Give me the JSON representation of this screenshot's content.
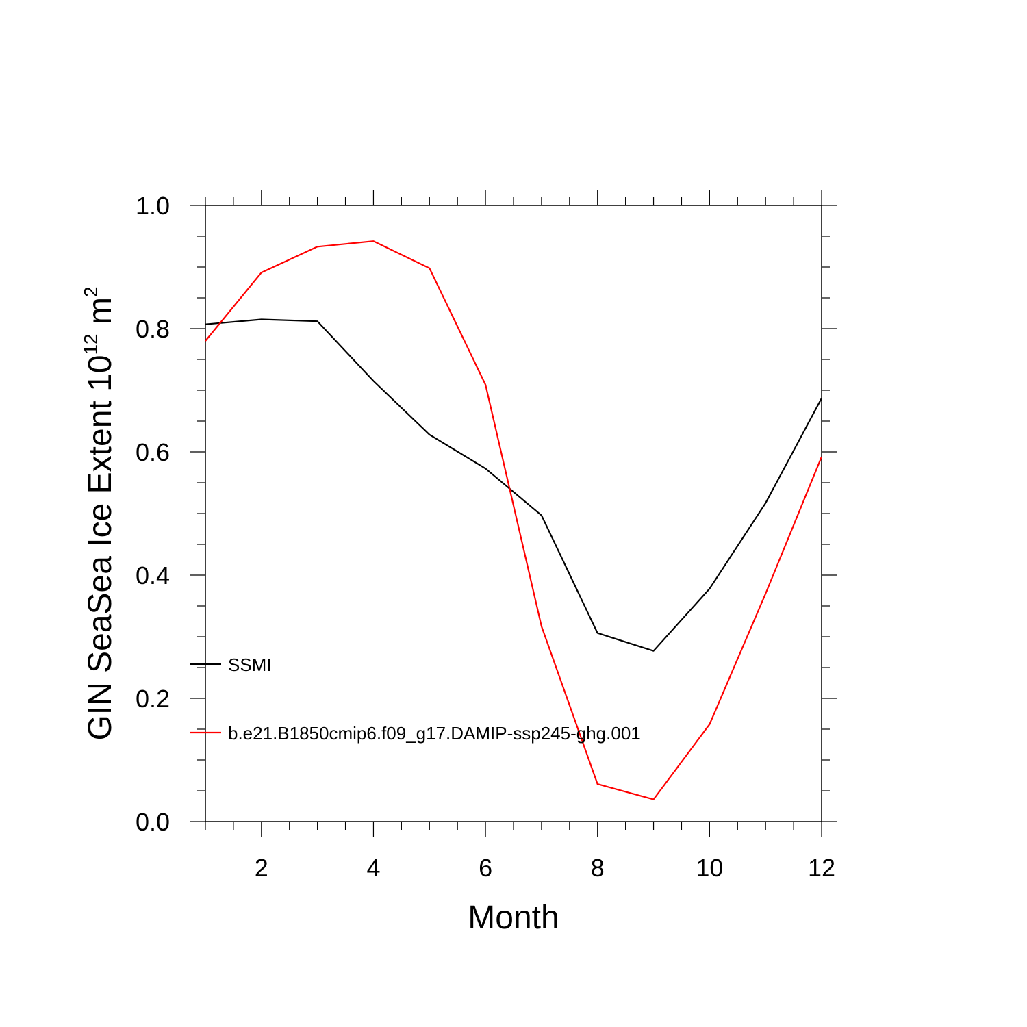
{
  "chart_data": {
    "type": "line",
    "title": "",
    "xlabel": "Month",
    "ylabel_main": "GIN SeaSea Ice Extent 10",
    "ylabel_sup1": "12",
    "ylabel_unit": " m",
    "ylabel_sup2": "2",
    "xlim": [
      1,
      12
    ],
    "ylim": [
      0.0,
      1.0
    ],
    "x_ticks": [
      2,
      4,
      6,
      8,
      10,
      12
    ],
    "x_tick_labels": [
      "2",
      "4",
      "6",
      "8",
      "10",
      "12"
    ],
    "y_ticks": [
      0.0,
      0.2,
      0.4,
      0.6,
      0.8,
      1.0
    ],
    "y_tick_labels": [
      "0.0",
      "0.2",
      "0.4",
      "0.6",
      "0.8",
      "1.0"
    ],
    "grid": false,
    "legend_position": "lower-left",
    "x": [
      1,
      2,
      3,
      4,
      5,
      6,
      7,
      8,
      9,
      10,
      11,
      12
    ],
    "series": [
      {
        "name": "SSMI",
        "color": "#000000",
        "values": [
          0.807,
          0.815,
          0.812,
          0.715,
          0.628,
          0.573,
          0.497,
          0.306,
          0.277,
          0.378,
          0.517,
          0.687
        ]
      },
      {
        "name": "b.e21.B1850cmip6.f09_g17.DAMIP-ssp245-ghg.001",
        "color": "#ff0000",
        "values": [
          0.78,
          0.891,
          0.933,
          0.942,
          0.898,
          0.709,
          0.317,
          0.061,
          0.036,
          0.158,
          0.37,
          0.592
        ]
      }
    ]
  }
}
